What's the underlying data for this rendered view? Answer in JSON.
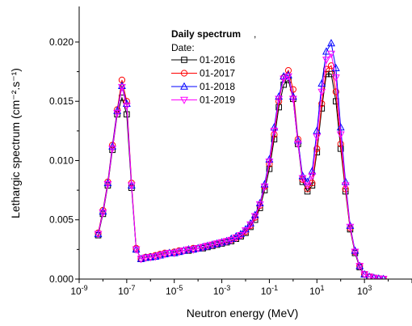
{
  "chart_data": {
    "type": "line",
    "x_scale": "log",
    "xlabel": "Neutron energy (MeV)",
    "ylabel": "Lethargic spectrum (cm⁻².s⁻¹)",
    "xlim": [
      1e-09,
      100000.0
    ],
    "ylim": [
      0,
      0.023
    ],
    "y_ticks": [
      0.0,
      0.005,
      0.01,
      0.015,
      0.02
    ],
    "y_tick_labels": [
      "0.000",
      "0.005",
      "0.010",
      "0.015",
      "0.020"
    ],
    "x_tick_labels": [
      "10-9",
      "10-7",
      "10-5",
      "10-3",
      "10-1",
      "101",
      "103"
    ],
    "legend": {
      "title_bold": "Daily spectrum",
      "title_rest": ",",
      "subtitle": "Date:",
      "placement": "top-center"
    },
    "x": [
      6.3e-09,
      1e-08,
      1.6e-08,
      2.5e-08,
      4e-08,
      6.3e-08,
      1e-07,
      1.6e-07,
      2.5e-07,
      4e-07,
      6.3e-07,
      1e-06,
      1.6e-06,
      2.5e-06,
      4e-06,
      6.3e-06,
      1e-05,
      1.6e-05,
      2.5e-05,
      4e-05,
      6.3e-05,
      0.0001,
      0.00016,
      0.00025,
      0.0004,
      0.00063,
      0.001,
      0.0016,
      0.0025,
      0.004,
      0.0063,
      0.01,
      0.016,
      0.025,
      0.04,
      0.063,
      0.1,
      0.16,
      0.25,
      0.4,
      0.63,
      1.0,
      1.6,
      2.5,
      4.0,
      6.3,
      10,
      16,
      25,
      40,
      63,
      100,
      160,
      250,
      400,
      630,
      1000,
      1600,
      2500,
      4000,
      6300,
      10000
    ],
    "series": [
      {
        "name": "01-2016",
        "color": "#000000",
        "marker": "square",
        "values": [
          0.0037,
          0.0055,
          0.0079,
          0.0109,
          0.0139,
          0.0153,
          0.0139,
          0.0077,
          0.0025,
          0.0017,
          0.0018,
          0.00185,
          0.0019,
          0.002,
          0.0021,
          0.0022,
          0.0022,
          0.0023,
          0.0024,
          0.0024,
          0.0025,
          0.0026,
          0.0026,
          0.0027,
          0.0028,
          0.0029,
          0.003,
          0.0031,
          0.0032,
          0.0034,
          0.0036,
          0.0039,
          0.0044,
          0.005,
          0.006,
          0.0075,
          0.0093,
          0.0118,
          0.0145,
          0.0164,
          0.0168,
          0.0152,
          0.0114,
          0.0082,
          0.0074,
          0.0079,
          0.0107,
          0.0144,
          0.0173,
          0.0173,
          0.015,
          0.011,
          0.0074,
          0.0042,
          0.0022,
          0.001,
          0.0004,
          0.0002,
          0.0001,
          4e-05,
          1e-05,
          0.0
        ]
      },
      {
        "name": "01-2017",
        "color": "#ff0000",
        "marker": "circle",
        "values": [
          0.0039,
          0.0058,
          0.0082,
          0.0113,
          0.0143,
          0.0168,
          0.015,
          0.0081,
          0.0026,
          0.0017,
          0.00185,
          0.0019,
          0.002,
          0.0021,
          0.0022,
          0.0022,
          0.0023,
          0.0024,
          0.0024,
          0.0025,
          0.0026,
          0.0026,
          0.0027,
          0.0028,
          0.0029,
          0.003,
          0.0031,
          0.0032,
          0.0033,
          0.0035,
          0.0037,
          0.004,
          0.0045,
          0.0052,
          0.0062,
          0.0078,
          0.0097,
          0.0122,
          0.015,
          0.017,
          0.0176,
          0.016,
          0.0118,
          0.0084,
          0.0076,
          0.0081,
          0.011,
          0.0148,
          0.0177,
          0.018,
          0.0158,
          0.0114,
          0.0076,
          0.0043,
          0.0023,
          0.0011,
          0.0004,
          0.0002,
          0.0001,
          4e-05,
          1e-05,
          0.0
        ]
      },
      {
        "name": "01-2018",
        "color": "#0000ff",
        "marker": "triangle-up",
        "values": [
          0.0038,
          0.0057,
          0.0081,
          0.0112,
          0.0142,
          0.0163,
          0.0148,
          0.0079,
          0.0025,
          0.0017,
          0.0018,
          0.00185,
          0.0019,
          0.002,
          0.0021,
          0.0022,
          0.0022,
          0.0023,
          0.0024,
          0.0025,
          0.0025,
          0.0026,
          0.0027,
          0.0028,
          0.0029,
          0.003,
          0.0031,
          0.0032,
          0.0034,
          0.0036,
          0.0038,
          0.0042,
          0.0047,
          0.0054,
          0.0064,
          0.008,
          0.0101,
          0.0128,
          0.0154,
          0.0171,
          0.0172,
          0.0154,
          0.0117,
          0.0087,
          0.0082,
          0.0091,
          0.0125,
          0.0165,
          0.0192,
          0.0199,
          0.0178,
          0.0128,
          0.0082,
          0.0045,
          0.0024,
          0.0011,
          0.0004,
          0.0002,
          0.0001,
          4e-05,
          1e-05,
          0.0
        ]
      },
      {
        "name": "01-2019",
        "color": "#ff00ff",
        "marker": "triangle-down",
        "values": [
          0.0038,
          0.0056,
          0.008,
          0.011,
          0.014,
          0.0162,
          0.0146,
          0.0079,
          0.0025,
          0.0017,
          0.0018,
          0.00185,
          0.0019,
          0.002,
          0.0021,
          0.0022,
          0.0022,
          0.0023,
          0.0024,
          0.0025,
          0.0025,
          0.0026,
          0.0027,
          0.0028,
          0.0029,
          0.003,
          0.0031,
          0.0032,
          0.0033,
          0.0035,
          0.0037,
          0.0041,
          0.0046,
          0.0053,
          0.0063,
          0.0078,
          0.0099,
          0.0125,
          0.0152,
          0.0169,
          0.0171,
          0.0152,
          0.0114,
          0.0085,
          0.0079,
          0.0087,
          0.012,
          0.0158,
          0.0185,
          0.019,
          0.017,
          0.0122,
          0.0079,
          0.0044,
          0.0023,
          0.0011,
          0.0004,
          0.0002,
          0.0001,
          4e-05,
          1e-05,
          0.0
        ]
      }
    ]
  }
}
